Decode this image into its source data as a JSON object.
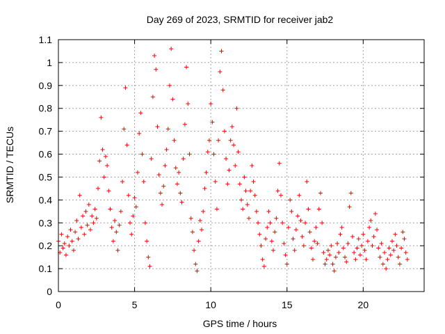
{
  "chart_data": {
    "type": "scatter",
    "title": "Day 269 of 2023, SRMTID for receiver jab2",
    "xlabel": "GPS time / hours",
    "ylabel": "SRMTID / TECUs",
    "xlim": [
      0,
      24
    ],
    "ylim": [
      0,
      1.1
    ],
    "xticks": [
      0,
      5,
      10,
      15,
      20
    ],
    "xtick_labels": [
      "0",
      "5",
      "10",
      "15",
      "20"
    ],
    "yticks": [
      0,
      0.1,
      0.2,
      0.3,
      0.4,
      0.5,
      0.6,
      0.7,
      0.8,
      0.9,
      1,
      1.1
    ],
    "ytick_labels": [
      "0",
      "0.1",
      "0.2",
      "0.3",
      "0.4",
      "0.5",
      "0.6",
      "0.7",
      "0.8",
      "0.9",
      "1",
      "1.1"
    ],
    "grid": true,
    "marker": "plus",
    "color": "#ff0000",
    "series": [
      {
        "name": "SRMTID",
        "points": [
          [
            0.0,
            0.22
          ],
          [
            0.1,
            0.17
          ],
          [
            0.2,
            0.25
          ],
          [
            0.3,
            0.19
          ],
          [
            0.4,
            0.21
          ],
          [
            0.5,
            0.16
          ],
          [
            0.6,
            0.24
          ],
          [
            0.7,
            0.2
          ],
          [
            0.8,
            0.27
          ],
          [
            0.9,
            0.22
          ],
          [
            1.0,
            0.18
          ],
          [
            1.1,
            0.26
          ],
          [
            1.2,
            0.31
          ],
          [
            1.3,
            0.23
          ],
          [
            1.4,
            0.42
          ],
          [
            1.5,
            0.28
          ],
          [
            1.6,
            0.33
          ],
          [
            1.7,
            0.25
          ],
          [
            1.8,
            0.35
          ],
          [
            1.9,
            0.29
          ],
          [
            2.0,
            0.38
          ],
          [
            2.1,
            0.27
          ],
          [
            2.2,
            0.33
          ],
          [
            2.3,
            0.3
          ],
          [
            2.4,
            0.36
          ],
          [
            2.5,
            0.32
          ],
          [
            2.6,
            0.45
          ],
          [
            2.7,
            0.57
          ],
          [
            2.8,
            0.76
          ],
          [
            2.9,
            0.62
          ],
          [
            3.0,
            0.5
          ],
          [
            3.1,
            0.59
          ],
          [
            3.2,
            0.55
          ],
          [
            3.3,
            0.44
          ],
          [
            3.4,
            0.36
          ],
          [
            3.5,
            0.28
          ],
          [
            3.6,
            0.22
          ],
          [
            3.7,
            0.31
          ],
          [
            3.8,
            0.26
          ],
          [
            3.9,
            0.18
          ],
          [
            4.0,
            0.29
          ],
          [
            4.1,
            0.35
          ],
          [
            4.2,
            0.48
          ],
          [
            4.3,
            0.71
          ],
          [
            4.4,
            0.89
          ],
          [
            4.5,
            0.64
          ],
          [
            4.6,
            0.42
          ],
          [
            4.7,
            0.3
          ],
          [
            4.8,
            0.25
          ],
          [
            4.9,
            0.33
          ],
          [
            5.0,
            0.41
          ],
          [
            5.1,
            0.37
          ],
          [
            5.2,
            0.52
          ],
          [
            5.3,
            0.69
          ],
          [
            5.4,
            0.78
          ],
          [
            5.5,
            0.6
          ],
          [
            5.6,
            0.48
          ],
          [
            5.7,
            0.3
          ],
          [
            5.8,
            0.22
          ],
          [
            5.9,
            0.15
          ],
          [
            6.0,
            0.11
          ],
          [
            6.1,
            0.58
          ],
          [
            6.2,
            0.85
          ],
          [
            6.3,
            1.03
          ],
          [
            6.4,
            0.97
          ],
          [
            6.5,
            0.72
          ],
          [
            6.6,
            0.51
          ],
          [
            6.7,
            0.43
          ],
          [
            6.8,
            0.38
          ],
          [
            6.9,
            0.46
          ],
          [
            7.0,
            0.55
          ],
          [
            7.1,
            0.62
          ],
          [
            7.2,
            0.71
          ],
          [
            7.3,
            0.9
          ],
          [
            7.4,
            1.06
          ],
          [
            7.5,
            0.84
          ],
          [
            7.6,
            0.66
          ],
          [
            7.7,
            0.54
          ],
          [
            7.8,
            0.47
          ],
          [
            7.9,
            0.52
          ],
          [
            8.0,
            0.43
          ],
          [
            8.1,
            0.39
          ],
          [
            8.2,
            0.58
          ],
          [
            8.3,
            0.73
          ],
          [
            8.4,
            0.98
          ],
          [
            8.5,
            0.82
          ],
          [
            8.6,
            0.6
          ],
          [
            8.7,
            0.32
          ],
          [
            8.8,
            0.26
          ],
          [
            8.9,
            0.18
          ],
          [
            9.0,
            0.12
          ],
          [
            9.1,
            0.09
          ],
          [
            9.2,
            0.22
          ],
          [
            9.3,
            0.31
          ],
          [
            9.4,
            0.27
          ],
          [
            9.5,
            0.35
          ],
          [
            9.6,
            0.45
          ],
          [
            9.7,
            0.52
          ],
          [
            9.8,
            0.61
          ],
          [
            9.9,
            0.66
          ],
          [
            10.0,
            0.82
          ],
          [
            10.1,
            0.74
          ],
          [
            10.2,
            0.6
          ],
          [
            10.3,
            0.48
          ],
          [
            10.4,
            0.36
          ],
          [
            10.5,
            0.66
          ],
          [
            10.6,
            0.96
          ],
          [
            10.7,
            1.05
          ],
          [
            10.8,
            0.88
          ],
          [
            10.9,
            0.7
          ],
          [
            11.0,
            0.58
          ],
          [
            11.1,
            0.47
          ],
          [
            11.2,
            0.53
          ],
          [
            11.3,
            0.66
          ],
          [
            11.4,
            0.72
          ],
          [
            11.5,
            0.64
          ],
          [
            11.6,
            0.55
          ],
          [
            11.7,
            0.8
          ],
          [
            11.8,
            0.61
          ],
          [
            11.9,
            0.47
          ],
          [
            12.0,
            0.4
          ],
          [
            12.1,
            0.36
          ],
          [
            12.2,
            0.5
          ],
          [
            12.3,
            0.44
          ],
          [
            12.4,
            0.38
          ],
          [
            12.5,
            0.32
          ],
          [
            12.6,
            0.44
          ],
          [
            12.7,
            0.55
          ],
          [
            12.8,
            0.48
          ],
          [
            12.9,
            0.42
          ],
          [
            13.0,
            0.35
          ],
          [
            13.1,
            0.3
          ],
          [
            13.2,
            0.25
          ],
          [
            13.3,
            0.2
          ],
          [
            13.4,
            0.14
          ],
          [
            13.5,
            0.11
          ],
          [
            13.6,
            0.23
          ],
          [
            13.7,
            0.28
          ],
          [
            13.8,
            0.35
          ],
          [
            13.9,
            0.3
          ],
          [
            14.0,
            0.22
          ],
          [
            14.1,
            0.18
          ],
          [
            14.2,
            0.26
          ],
          [
            14.3,
            0.32
          ],
          [
            14.4,
            0.44
          ],
          [
            14.5,
            0.56
          ],
          [
            14.6,
            0.42
          ],
          [
            14.7,
            0.3
          ],
          [
            14.8,
            0.21
          ],
          [
            14.9,
            0.16
          ],
          [
            15.0,
            0.12
          ],
          [
            15.1,
            0.28
          ],
          [
            15.2,
            0.4
          ],
          [
            15.3,
            0.35
          ],
          [
            15.4,
            0.23
          ],
          [
            15.5,
            0.18
          ],
          [
            15.6,
            0.27
          ],
          [
            15.7,
            0.33
          ],
          [
            15.8,
            0.42
          ],
          [
            15.9,
            0.31
          ],
          [
            16.0,
            0.24
          ],
          [
            16.1,
            0.2
          ],
          [
            16.2,
            0.3
          ],
          [
            16.3,
            0.48
          ],
          [
            16.4,
            0.36
          ],
          [
            16.5,
            0.26
          ],
          [
            16.6,
            0.19
          ],
          [
            16.7,
            0.14
          ],
          [
            16.8,
            0.22
          ],
          [
            16.9,
            0.28
          ],
          [
            17.0,
            0.21
          ],
          [
            17.1,
            0.36
          ],
          [
            17.2,
            0.43
          ],
          [
            17.3,
            0.3
          ],
          [
            17.4,
            0.17
          ],
          [
            17.5,
            0.12
          ],
          [
            17.6,
            0.14
          ],
          [
            17.7,
            0.18
          ],
          [
            17.8,
            0.16
          ],
          [
            17.9,
            0.2
          ],
          [
            18.0,
            0.12
          ],
          [
            18.1,
            0.09
          ],
          [
            18.2,
            0.15
          ],
          [
            18.3,
            0.21
          ],
          [
            18.4,
            0.17
          ],
          [
            18.5,
            0.25
          ],
          [
            18.6,
            0.28
          ],
          [
            18.7,
            0.19
          ],
          [
            18.8,
            0.15
          ],
          [
            18.9,
            0.13
          ],
          [
            19.0,
            0.21
          ],
          [
            19.1,
            0.37
          ],
          [
            19.2,
            0.43
          ],
          [
            19.3,
            0.24
          ],
          [
            19.4,
            0.17
          ],
          [
            19.5,
            0.14
          ],
          [
            19.6,
            0.19
          ],
          [
            19.7,
            0.23
          ],
          [
            19.8,
            0.16
          ],
          [
            19.9,
            0.2
          ],
          [
            20.0,
            0.25
          ],
          [
            20.1,
            0.18
          ],
          [
            20.2,
            0.14
          ],
          [
            20.3,
            0.22
          ],
          [
            20.4,
            0.28
          ],
          [
            20.5,
            0.31
          ],
          [
            20.6,
            0.2
          ],
          [
            20.7,
            0.24
          ],
          [
            20.8,
            0.34
          ],
          [
            20.9,
            0.27
          ],
          [
            21.0,
            0.19
          ],
          [
            21.1,
            0.15
          ],
          [
            21.2,
            0.21
          ],
          [
            21.3,
            0.12
          ],
          [
            21.4,
            0.17
          ],
          [
            21.5,
            0.1
          ],
          [
            21.6,
            0.14
          ],
          [
            21.7,
            0.19
          ],
          [
            21.8,
            0.16
          ],
          [
            21.9,
            0.22
          ],
          [
            22.0,
            0.18
          ],
          [
            22.1,
            0.25
          ],
          [
            22.2,
            0.2
          ],
          [
            22.3,
            0.15
          ],
          [
            22.4,
            0.12
          ],
          [
            22.5,
            0.19
          ],
          [
            22.6,
            0.26
          ],
          [
            22.7,
            0.23
          ],
          [
            22.8,
            0.17
          ],
          [
            22.9,
            0.14
          ]
        ]
      }
    ]
  }
}
